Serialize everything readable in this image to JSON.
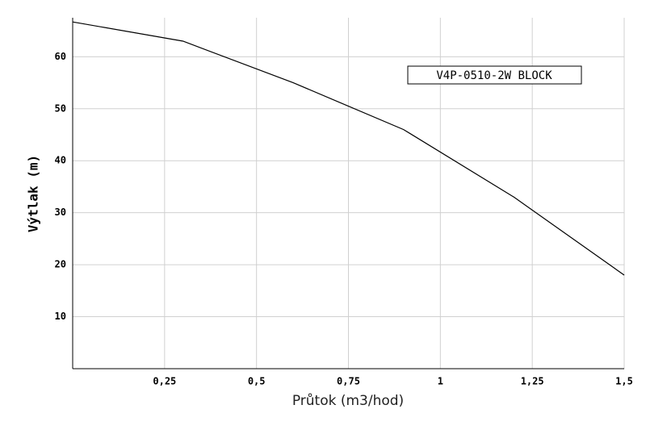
{
  "chart_data": {
    "type": "line",
    "x_label": "Průtok (m3/hod)",
    "y_label": "Výtlak (m)",
    "series": [
      {
        "name": "V4P-0510-2W BLOCK",
        "color": "#000000",
        "x": [
          0,
          0.3,
          0.6,
          0.9,
          1.2,
          1.5
        ],
        "values": [
          66.7,
          63,
          55,
          46,
          33,
          18
        ]
      }
    ],
    "xlim": [
      0,
      1.5
    ],
    "xticks": [
      {
        "value": 0.25,
        "label": "0,25"
      },
      {
        "value": 0.5,
        "label": "0,5"
      },
      {
        "value": 0.75,
        "label": "0,75"
      },
      1,
      {
        "value": 1.25,
        "label": "1,25"
      },
      {
        "value": 1.5,
        "label": "1,5"
      }
    ],
    "ylim": [
      0,
      67.5
    ],
    "yticks": [
      10,
      20,
      30,
      40,
      50,
      60
    ],
    "grid": true,
    "legend": "upper right"
  }
}
